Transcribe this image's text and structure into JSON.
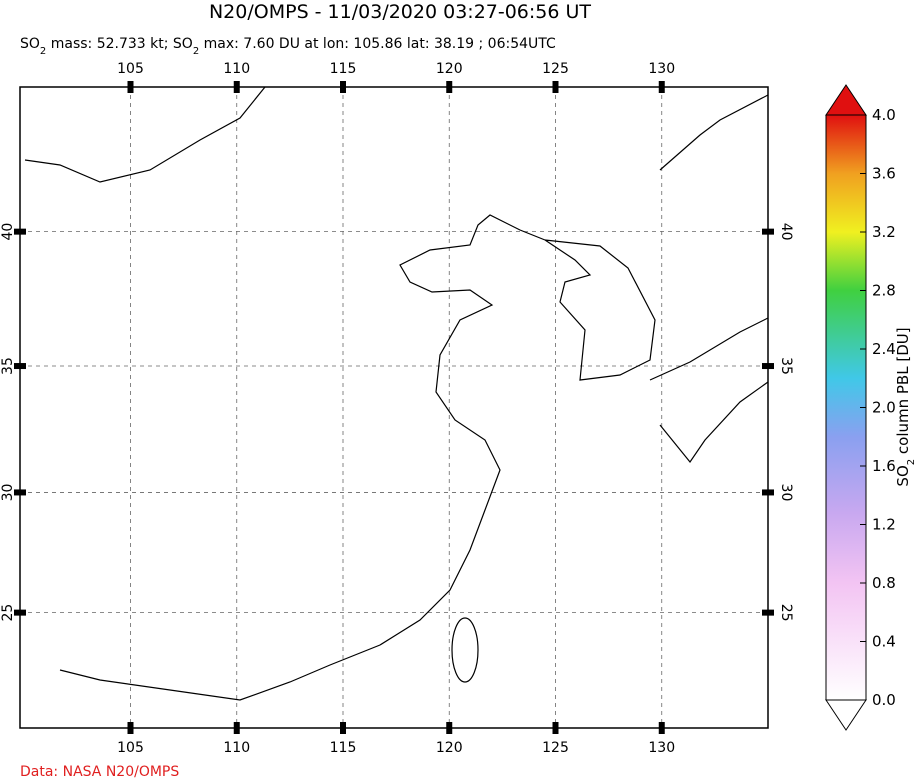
{
  "title": "N20/OMPS - 11/03/2020 03:27-06:56 UT",
  "subtitle": [
    "SO",
    "2",
    " mass: 52.733 kt; SO",
    "2",
    " max: 7.60 DU at lon: 105.86 lat: 38.19 ; 06:54UTC"
  ],
  "map": {
    "xlim": [
      99.8,
      135.0
    ],
    "ylim": [
      20.0,
      45.0
    ],
    "lon_ticks": [
      105,
      110,
      115,
      120,
      125,
      130
    ],
    "lat_ticks": [
      25,
      30,
      35,
      40
    ]
  },
  "colorbar": {
    "lim": [
      0,
      4.0
    ],
    "ticks": [
      {
        "value": 0,
        "label": "0.0"
      },
      {
        "value": 0.4,
        "label": "0.4"
      },
      {
        "value": 0.8,
        "label": "0.8"
      },
      {
        "value": 1.2,
        "label": "1.2"
      },
      {
        "value": 1.6,
        "label": "1.6"
      },
      {
        "value": 2.0,
        "label": "2.0"
      },
      {
        "value": 2.4,
        "label": "2.4"
      },
      {
        "value": 2.8,
        "label": "2.8"
      },
      {
        "value": 3.2,
        "label": "3.2"
      },
      {
        "value": 3.6,
        "label": "3.6"
      },
      {
        "value": 4.0,
        "label": "4.0"
      }
    ],
    "label": [
      "SO",
      "2",
      " column PBL [DU]"
    ]
  },
  "credit": "Data: NASA N20/OMPS"
}
